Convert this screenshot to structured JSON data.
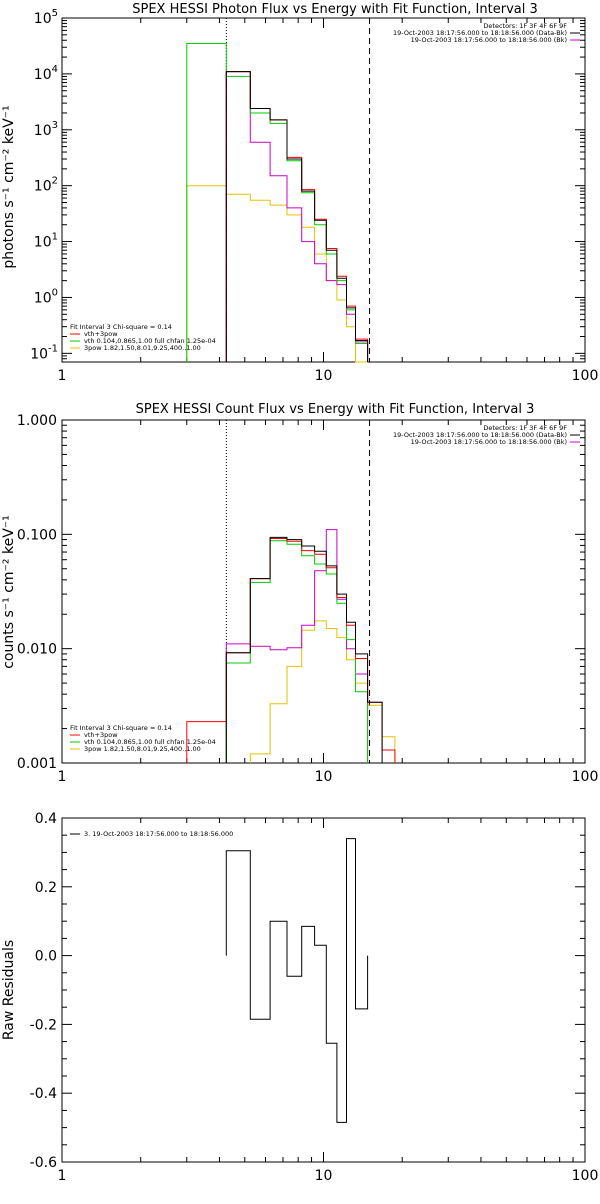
{
  "chart_data": [
    {
      "type": "line",
      "step": true,
      "title": "SPEX HESSI Photon Flux vs Energy with Fit Function, Interval 3",
      "xlabel": "",
      "ylabel": "photons s⁻¹ cm⁻² keV⁻¹",
      "xscale": "log",
      "yscale": "log",
      "xlim": [
        1,
        100
      ],
      "ylim": [
        0.07,
        100000
      ],
      "xticks": [
        "1",
        "10",
        "100"
      ],
      "yticks": [
        {
          "base": "10",
          "exp": "5",
          "value": 100000
        },
        {
          "base": "10",
          "exp": "4",
          "value": 10000
        },
        {
          "base": "10",
          "exp": "3",
          "value": 1000
        },
        {
          "base": "10",
          "exp": "2",
          "value": 100
        },
        {
          "base": "10",
          "exp": "1",
          "value": 10
        },
        {
          "base": "10",
          "exp": "0",
          "value": 1
        },
        {
          "base": "10",
          "exp": "-1",
          "value": 0.1
        }
      ],
      "legend_top_right": [
        {
          "text": "Detectors: 1F 3F 4F 6F 9F",
          "color": ""
        },
        {
          "text": "19-Oct-2003 18:17:56.000 to 18:18:56.000 (Data-Bk)",
          "color": "#000000"
        },
        {
          "text": "19-Oct-2003 18:17:56.000 to 18:18:56.000 (Bk)",
          "color": "#cc00cc"
        }
      ],
      "legend_bottom_left": [
        {
          "text": "Fit Interval 3   Chi-square = 0.14",
          "color": ""
        },
        {
          "text": "vth+3pow",
          "color": "#ff0000"
        },
        {
          "text": "vth 0.104,0.865,1.00  full chfan 1.25e-04",
          "color": "#00cc00"
        },
        {
          "text": "3pow 1.82,1.50,8.01,9.25,400.,1.00",
          "color": "#e6c000"
        }
      ],
      "vlines": [
        {
          "x": 4.25,
          "style": "dotted"
        },
        {
          "x": 15.0,
          "style": "dashed"
        }
      ],
      "edges": [
        3.0,
        4.25,
        5.25,
        6.25,
        7.25,
        8.25,
        9.25,
        10.25,
        11.25,
        12.25,
        13.25,
        14.75
      ],
      "series": [
        {
          "color": "#e6c000",
          "values": [
            100,
            70,
            55,
            45,
            30,
            18,
            6,
            2,
            0.9,
            0.3,
            0.07
          ]
        },
        {
          "color": "#cc00cc",
          "values": [
            null,
            11000,
            600,
            150,
            40,
            10,
            4,
            2,
            1.7,
            0.5,
            0.16
          ]
        },
        {
          "color": "#00cc00",
          "values": [
            35000,
            9000,
            2000,
            1300,
            280,
            75,
            20,
            6,
            2,
            0.6,
            0.15
          ]
        },
        {
          "color": "#ff0000",
          "values": [
            null,
            11000,
            2400,
            1500,
            320,
            85,
            25,
            7.5,
            2.4,
            0.7,
            0.18
          ]
        },
        {
          "color": "#000000",
          "values": [
            null,
            11000,
            2400,
            1500,
            300,
            80,
            24,
            7,
            2.2,
            0.65,
            0.17
          ]
        }
      ]
    },
    {
      "type": "line",
      "step": true,
      "title": "SPEX HESSI Count Flux vs Energy with Fit Function, Interval 3",
      "xlabel": "",
      "ylabel": "counts s⁻¹ cm⁻² keV⁻¹",
      "xscale": "log",
      "yscale": "log",
      "xlim": [
        1,
        100
      ],
      "ylim": [
        0.001,
        1
      ],
      "xticks": [
        "1",
        "10",
        "100"
      ],
      "yticks": [
        {
          "label": "1.000",
          "value": 1
        },
        {
          "label": "0.100",
          "value": 0.1
        },
        {
          "label": "0.010",
          "value": 0.01
        },
        {
          "label": "0.001",
          "value": 0.001
        }
      ],
      "legend_top_right": [
        {
          "text": "Detectors: 1F 3F 4F 6F 9F",
          "color": ""
        },
        {
          "text": "19-Oct-2003 18:17:56.000 to 18:18:56.000 (Data-Bk)",
          "color": "#000000"
        },
        {
          "text": "19-Oct-2003 18:17:56.000 to 18:18:56.000 (Bk)",
          "color": "#cc00cc"
        }
      ],
      "legend_bottom_left": [
        {
          "text": "Fit Interval 3   Chi-square = 0.14",
          "color": ""
        },
        {
          "text": "vth+3pow",
          "color": "#ff0000"
        },
        {
          "text": "vth 0.104,0.865,1.00  full chfan 1.25e-04",
          "color": "#00cc00"
        },
        {
          "text": "3pow 1.82,1.50,8.01,9.25,400.,1.00",
          "color": "#e6c000"
        }
      ],
      "vlines": [
        {
          "x": 4.25,
          "style": "dotted"
        },
        {
          "x": 15.0,
          "style": "dashed"
        }
      ],
      "edges": [
        3.0,
        4.25,
        5.25,
        6.25,
        7.25,
        8.25,
        9.25,
        10.25,
        11.25,
        12.25,
        13.25,
        14.75,
        16.75,
        18.75
      ],
      "series": [
        {
          "color": "#e6c000",
          "values": [
            null,
            null,
            0.0012,
            0.0033,
            0.007,
            0.0145,
            0.0175,
            0.015,
            0.0125,
            0.008,
            0.005,
            0.0032,
            0.0017
          ]
        },
        {
          "color": "#cc00cc",
          "values": [
            null,
            0.011,
            0.0105,
            0.0098,
            0.0102,
            0.016,
            0.048,
            0.11,
            0.027,
            0.01,
            0.006,
            null,
            null
          ]
        },
        {
          "color": "#00cc00",
          "values": [
            null,
            0.0075,
            0.038,
            0.088,
            0.082,
            0.065,
            0.055,
            0.045,
            0.025,
            0.012,
            0.0042,
            null,
            null
          ]
        },
        {
          "color": "#ff0000",
          "values": [
            0.0023,
            0.0092,
            0.041,
            0.092,
            0.087,
            0.072,
            0.067,
            0.051,
            0.028,
            0.016,
            0.0082,
            0.0034,
            0.0013
          ]
        },
        {
          "color": "#000000",
          "values": [
            null,
            0.0092,
            0.041,
            0.094,
            0.09,
            0.079,
            0.071,
            0.053,
            0.03,
            0.017,
            0.009,
            0.0034,
            null
          ]
        }
      ]
    },
    {
      "type": "line",
      "step": true,
      "title": "",
      "xlabel": "",
      "ylabel": "Raw Residuals",
      "xscale": "log",
      "yscale": "linear",
      "xlim": [
        1,
        100
      ],
      "ylim": [
        -0.6,
        0.4
      ],
      "xticks": [
        "1",
        "10",
        "100"
      ],
      "yticks": [
        {
          "label": "0.4",
          "value": 0.4
        },
        {
          "label": "0.2",
          "value": 0.2
        },
        {
          "label": "0.0",
          "value": 0.0
        },
        {
          "label": "-0.2",
          "value": -0.2
        },
        {
          "label": "-0.4",
          "value": -0.4
        },
        {
          "label": "-0.6",
          "value": -0.6
        }
      ],
      "legend_top_left": [
        {
          "text": "3. 19-Oct-2003 18:17:56.000 to 18:18:56.000",
          "color": "#000000"
        }
      ],
      "edges": [
        4.25,
        5.25,
        6.25,
        7.25,
        8.25,
        9.25,
        10.25,
        11.25,
        12.25,
        13.25,
        14.75
      ],
      "series": [
        {
          "color": "#000000",
          "values": [
            0.305,
            -0.185,
            0.1,
            -0.06,
            0.085,
            0.03,
            -0.255,
            -0.485,
            0.34,
            -0.155
          ]
        }
      ]
    }
  ]
}
